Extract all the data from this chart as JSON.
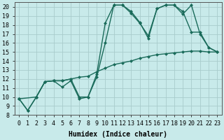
{
  "xlabel": "Humidex (Indice chaleur)",
  "xlim": [
    -0.5,
    23.5
  ],
  "ylim": [
    8,
    20.5
  ],
  "yticks": [
    8,
    9,
    10,
    11,
    12,
    13,
    14,
    15,
    16,
    17,
    18,
    19,
    20
  ],
  "xticks": [
    0,
    1,
    2,
    3,
    4,
    5,
    6,
    7,
    8,
    9,
    10,
    11,
    12,
    13,
    14,
    15,
    16,
    17,
    18,
    19,
    20,
    21,
    22,
    23
  ],
  "bg_color": "#c8eaea",
  "grid_color": "#a8cccc",
  "line_color": "#1a6b5a",
  "line1_x": [
    0,
    1,
    2,
    3,
    4,
    5,
    6,
    7,
    8,
    9,
    10,
    11,
    12,
    13,
    14,
    15,
    16,
    17,
    18,
    19,
    20,
    21,
    22,
    23
  ],
  "line1_y": [
    9.8,
    8.5,
    10.0,
    11.7,
    11.8,
    11.1,
    11.8,
    9.8,
    10.0,
    12.5,
    18.2,
    20.2,
    20.2,
    19.5,
    18.3,
    16.5,
    19.8,
    20.2,
    20.2,
    19.2,
    20.2,
    17.0,
    15.5,
    15.0
  ],
  "line2_x": [
    0,
    1,
    2,
    3,
    4,
    5,
    6,
    7,
    8,
    9,
    10,
    11,
    12,
    13,
    14,
    15,
    16,
    17,
    18,
    19,
    20,
    21,
    22,
    23
  ],
  "line2_y": [
    9.8,
    8.5,
    10.0,
    11.7,
    11.8,
    11.8,
    12.0,
    10.0,
    10.0,
    12.2,
    16.0,
    20.2,
    20.2,
    19.3,
    18.2,
    16.8,
    19.8,
    20.2,
    20.2,
    19.5,
    17.2,
    17.2,
    15.5,
    15.0
  ],
  "line3_x": [
    0,
    2,
    3,
    4,
    5,
    6,
    7,
    8,
    9,
    10,
    11,
    12,
    13,
    14,
    15,
    16,
    17,
    18,
    19,
    20,
    21,
    22,
    23
  ],
  "line3_y": [
    9.8,
    10.0,
    11.7,
    11.8,
    11.8,
    12.0,
    12.2,
    12.3,
    12.8,
    13.2,
    13.6,
    13.8,
    14.0,
    14.3,
    14.5,
    14.7,
    14.8,
    14.9,
    15.0,
    15.1,
    15.1,
    15.0,
    15.0
  ],
  "marker_size": 2.5,
  "line_width": 1.0,
  "font_size": 7,
  "tick_labelsize": 6
}
